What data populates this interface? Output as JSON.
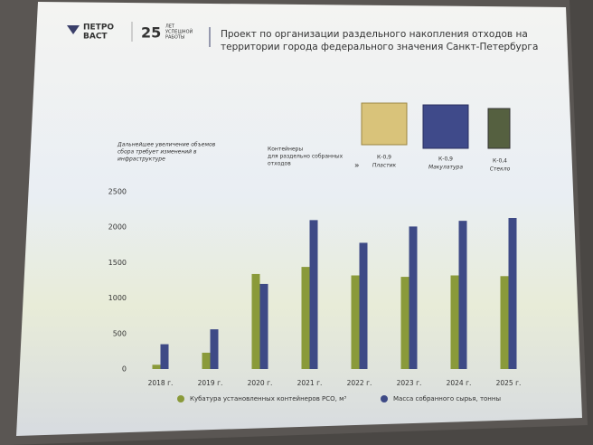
{
  "header": {
    "logo_lines": [
      "ПЕТРО",
      "ВАСТ"
    ],
    "anniversary": "25",
    "anniversary_caption": [
      "ЛЕТ",
      "УСПЕШНОЙ",
      "РАБОТЫ"
    ],
    "title_lines": [
      "Проект по организации раздельного накопления отходов на",
      "территории города федерального значения Санкт-Петербурга"
    ]
  },
  "note_lines": [
    "Дальнейшее увеличение объемов",
    "сбора требует изменений в",
    "инфраструктуре"
  ],
  "containers": {
    "caption_lines": [
      "Контейнеры",
      "для раздельно собранных",
      "отходов"
    ],
    "items": [
      {
        "code": "К-0,9",
        "label": "Пластик"
      },
      {
        "code": "К-0,9",
        "label": "Макулатура"
      },
      {
        "code": "К-0,4",
        "label": "Стекло"
      }
    ]
  },
  "chart_data": {
    "type": "bar",
    "categories": [
      "2018 г.",
      "2019 г.",
      "2020 г.",
      "2021 г.",
      "2022 г.",
      "2023 г.",
      "2024 г.",
      "2025 г."
    ],
    "series": [
      {
        "name": "Кубатура установленных контейнеров РСО, м³",
        "color": "#8a9a3a",
        "values": [
          60,
          230,
          1340,
          1440,
          1320,
          1300,
          1320,
          1310
        ]
      },
      {
        "name": "Масса собранного сырья, тонны",
        "color": "#3e4a86",
        "values": [
          350,
          560,
          1200,
          2100,
          1780,
          2010,
          2090,
          2130
        ]
      }
    ],
    "ylim": [
      0,
      2500
    ],
    "yticks": [
      0,
      500,
      1000,
      1500,
      2000,
      2500
    ],
    "grid": false,
    "legend": "bottom"
  }
}
